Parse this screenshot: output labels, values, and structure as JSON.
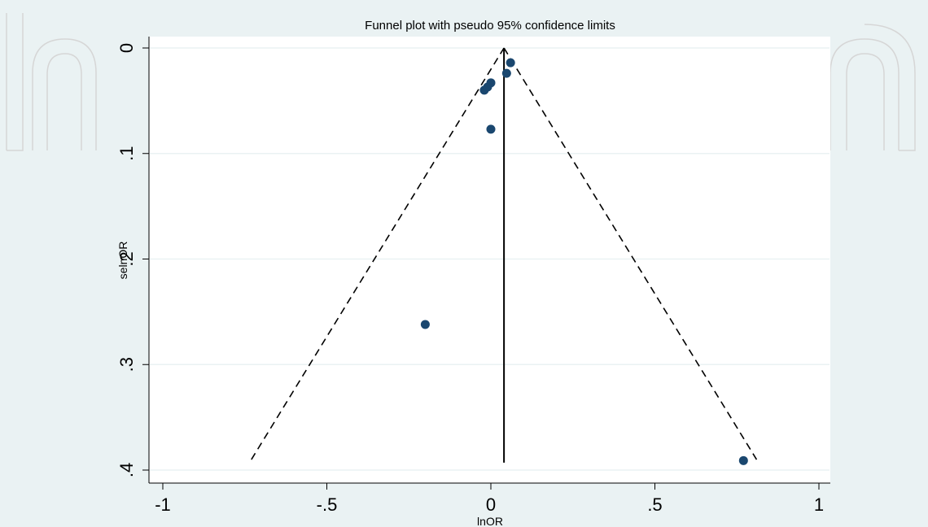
{
  "colors": {
    "outer_background": "#eaf2f3",
    "plot_background": "#ffffff",
    "gridline": "#eaf2f3",
    "point": "#1a476f",
    "line": "#000000",
    "watermark": "#d6d6d6"
  },
  "chart_data": {
    "type": "scatter",
    "title": "Funnel plot with pseudo 95% confidence limits",
    "xlabel": "lnOR",
    "ylabel": "selnOR",
    "xlim": [
      -1,
      1
    ],
    "ylim": [
      0,
      0.4
    ],
    "y_reversed": true,
    "x_ticks": [
      -1,
      -0.5,
      0,
      0.5,
      1
    ],
    "x_tick_labels": [
      "-1",
      "-.5",
      "0",
      ".5",
      "1"
    ],
    "y_ticks": [
      0,
      0.1,
      0.2,
      0.3,
      0.4
    ],
    "y_tick_labels": [
      "0",
      ".1",
      ".2",
      ".3",
      ".4"
    ],
    "grid": true,
    "points": [
      {
        "x": 0.06,
        "y": 0.014
      },
      {
        "x": 0.048,
        "y": 0.024
      },
      {
        "x": 0.0,
        "y": 0.033
      },
      {
        "x": -0.01,
        "y": 0.037
      },
      {
        "x": -0.02,
        "y": 0.04
      },
      {
        "x": 0.0,
        "y": 0.077
      },
      {
        "x": -0.2,
        "y": 0.262
      },
      {
        "x": 0.77,
        "y": 0.391
      }
    ],
    "pooled_estimate": {
      "x": 0.04,
      "y_from": 0,
      "y_to": 0.393
    },
    "confidence_limits": {
      "apex": {
        "x": 0.04,
        "y": 0
      },
      "left_end": {
        "x": -0.73,
        "y": 0.39
      },
      "right_end": {
        "x": 0.81,
        "y": 0.39
      }
    }
  }
}
